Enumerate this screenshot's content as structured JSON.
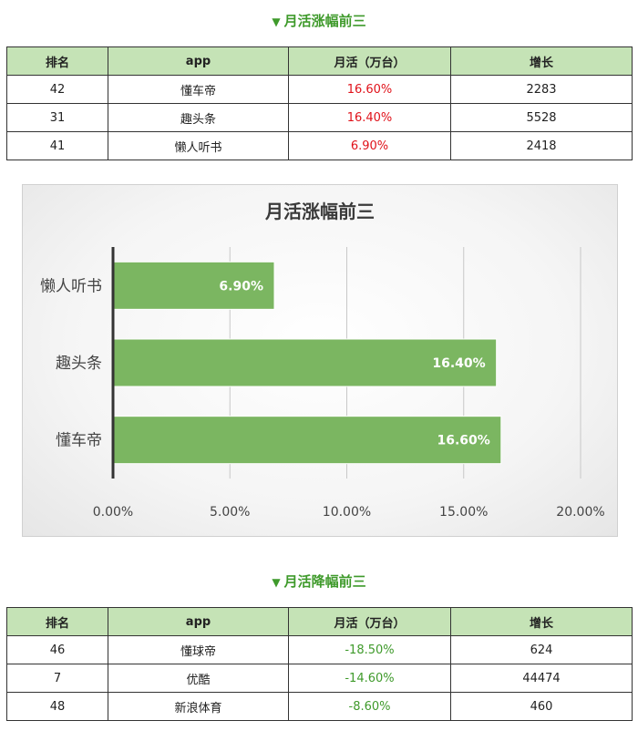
{
  "section1": {
    "title": "月活涨幅前三",
    "marker": "▼"
  },
  "section2": {
    "title": "月活降幅前三",
    "marker": "▼"
  },
  "table_headers": [
    "排名",
    "app",
    "月活（万台）",
    "增长"
  ],
  "table1_rows": [
    {
      "rank": "42",
      "app": "懂车帝",
      "mau": "16.60%",
      "growth": "2283"
    },
    {
      "rank": "31",
      "app": "趣头条",
      "mau": "16.40%",
      "growth": "5528"
    },
    {
      "rank": "41",
      "app": "懒人听书",
      "mau": "6.90%",
      "growth": "2418"
    }
  ],
  "table2_rows": [
    {
      "rank": "46",
      "app": "懂球帝",
      "mau": "-18.50%",
      "growth": "624"
    },
    {
      "rank": "7",
      "app": "优酷",
      "mau": "-14.60%",
      "growth": "44474"
    },
    {
      "rank": "48",
      "app": "新浪体育",
      "mau": "-8.60%",
      "growth": "460"
    }
  ],
  "colors": {
    "title_green": "#3f9a2b",
    "header_bg": "#c5e3b6",
    "positive": "#e0121a",
    "negative": "#3f9a2b",
    "bar": "#7bb661"
  },
  "chart_data": {
    "type": "bar",
    "orientation": "horizontal",
    "title": "月活涨幅前三",
    "categories": [
      "懒人听书",
      "趣头条",
      "懂车帝"
    ],
    "values": [
      6.9,
      16.4,
      16.6
    ],
    "value_labels": [
      "6.90%",
      "16.40%",
      "16.60%"
    ],
    "xlim": [
      0,
      20
    ],
    "xticks": [
      0,
      5,
      10,
      15,
      20
    ],
    "xtick_labels": [
      "0.00%",
      "5.00%",
      "10.00%",
      "15.00%",
      "20.00%"
    ],
    "xlabel": "",
    "ylabel": "",
    "grid": "vertical",
    "legend": "none"
  }
}
